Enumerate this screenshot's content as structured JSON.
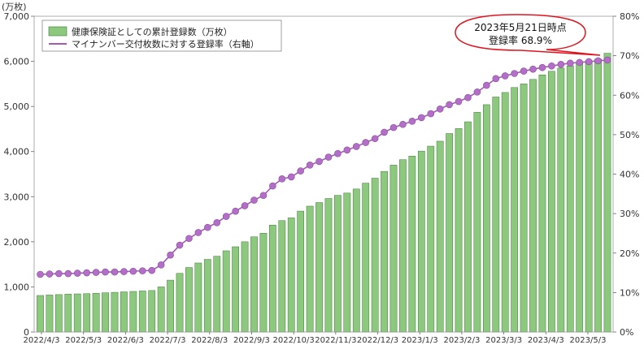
{
  "chart_data": {
    "type": "bar",
    "y_unit_label": "(万枚)",
    "y_ticks": [
      "0",
      "1,000",
      "2,000",
      "3,000",
      "4,000",
      "5,000",
      "6,000",
      "7,000"
    ],
    "y2_ticks": [
      "0%",
      "10%",
      "20%",
      "30%",
      "40%",
      "50%",
      "60%",
      "70%",
      "80%"
    ],
    "ylim": [
      0,
      7000
    ],
    "y2lim": [
      0,
      80
    ],
    "x_tick_labels": [
      "2022/4/3",
      "2022/5/3",
      "2022/6/3",
      "2022/7/3",
      "2022/8/3",
      "2022/9/3",
      "2022/10/3",
      "2022/11/3",
      "2022/12/3",
      "2023/1/3",
      "2023/2/3",
      "2023/3/3",
      "2023/4/3",
      "2023/5/3"
    ],
    "legend_placement": "top-left",
    "legend": [
      {
        "label": "健康保険証としての累計登録数（万枚）",
        "kind": "bar",
        "color": "#8cc97e"
      },
      {
        "label": "マイナンバー交付枚数に対する登録率（右軸）",
        "kind": "line",
        "color": "#a15bb5"
      }
    ],
    "callout": {
      "line1": "2023年5月21日時点",
      "line2": "登録率 68.9%"
    },
    "series": [
      {
        "name": "健康保険証としての累計登録数（万枚）",
        "type": "bar",
        "axis": "left",
        "color": "#8cc97e",
        "values": [
          810,
          820,
          830,
          840,
          845,
          850,
          860,
          870,
          880,
          890,
          900,
          910,
          920,
          1000,
          1150,
          1300,
          1430,
          1530,
          1610,
          1680,
          1800,
          1890,
          2000,
          2110,
          2190,
          2370,
          2470,
          2530,
          2680,
          2790,
          2870,
          2960,
          3030,
          3080,
          3170,
          3300,
          3410,
          3560,
          3700,
          3820,
          3900,
          4010,
          4120,
          4230,
          4400,
          4510,
          4660,
          4870,
          5040,
          5210,
          5310,
          5420,
          5500,
          5600,
          5700,
          5780,
          5850,
          5900,
          5950,
          6000,
          6050,
          6180
        ]
      },
      {
        "name": "マイナンバー交付枚数に対する登録率（右軸）",
        "type": "line",
        "axis": "right",
        "color": "#a15bb5",
        "values": [
          14.6,
          14.7,
          14.8,
          14.8,
          14.9,
          15.0,
          15.1,
          15.2,
          15.2,
          15.3,
          15.4,
          15.5,
          15.6,
          17.0,
          19.5,
          22.0,
          23.7,
          25.2,
          26.5,
          27.7,
          29.3,
          30.6,
          32.0,
          33.4,
          34.6,
          37.0,
          38.8,
          39.3,
          40.8,
          42.3,
          43.2,
          44.3,
          45.2,
          46.1,
          47.0,
          48.0,
          49.0,
          50.6,
          51.8,
          52.6,
          53.4,
          54.3,
          55.3,
          56.5,
          57.6,
          58.4,
          59.4,
          60.8,
          62.5,
          64.2,
          64.9,
          65.5,
          66.1,
          66.6,
          67.0,
          67.4,
          67.8,
          68.1,
          68.3,
          68.5,
          68.7,
          68.9
        ]
      }
    ]
  }
}
